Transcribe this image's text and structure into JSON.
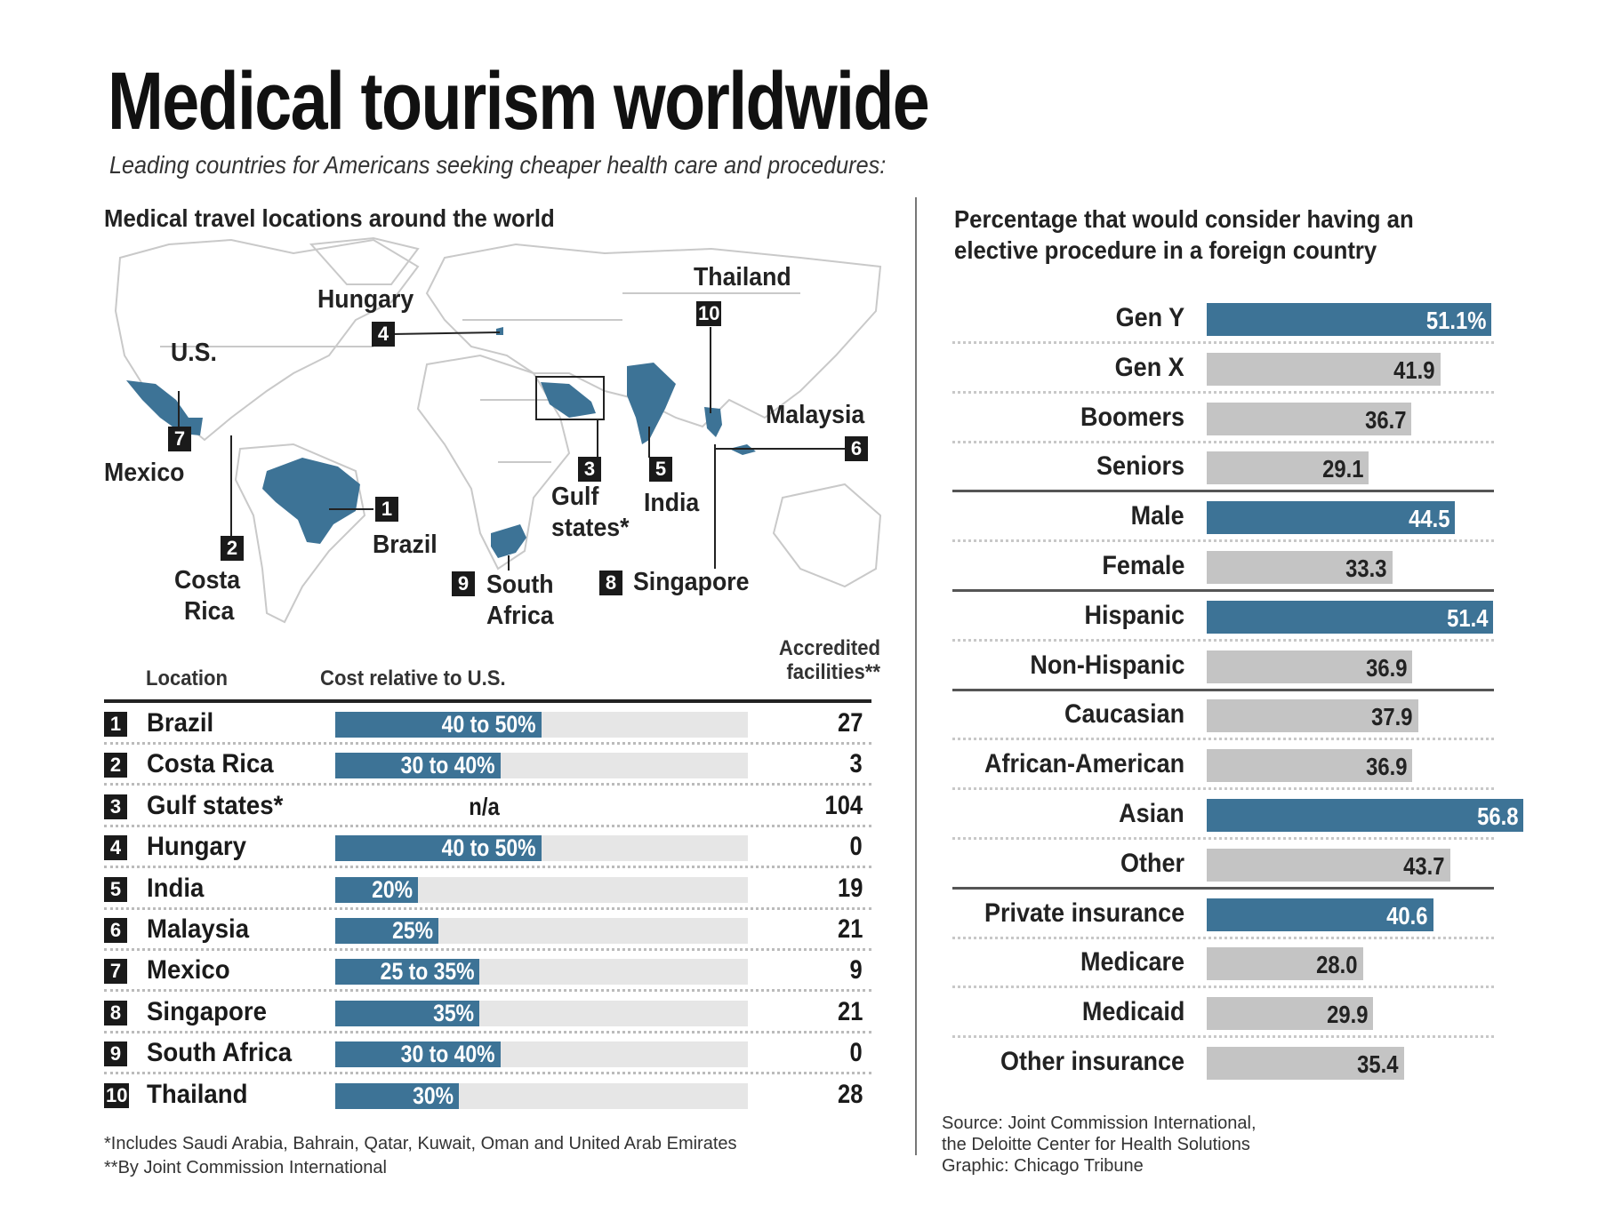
{
  "title": "Medical tourism worldwide",
  "subtitle": "Leading countries for Americans seeking cheaper health care and procedures:",
  "left_heading": "Medical travel locations around the world",
  "right_heading_line1": "Percentage that would consider having an",
  "right_heading_line2": "elective procedure in a foreign country",
  "map": {
    "us_label": "U.S.",
    "labels": {
      "mexico": "Mexico",
      "costa1": "Costa",
      "costa2": "Rica",
      "brazil": "Brazil",
      "hungary": "Hungary",
      "gulf1": "Gulf",
      "gulf2": "states*",
      "india": "India",
      "thailand": "Thailand",
      "malaysia": "Malaysia",
      "singapore": "Singapore",
      "sa1": "South",
      "sa2": "Africa"
    },
    "badges": {
      "brazil": "1",
      "costa": "2",
      "gulf": "3",
      "hungary": "4",
      "india": "5",
      "malaysia": "6",
      "mexico": "7",
      "singapore": "8",
      "sa": "9",
      "thailand": "10"
    },
    "highlight_color": "#3d7396"
  },
  "table": {
    "headers": {
      "location": "Location",
      "cost": "Cost relative to U.S.",
      "fac1": "Accredited",
      "fac2": "facilities**"
    },
    "rows": [
      {
        "rank": "1",
        "name": "Brazil",
        "cost": "40 to 50%",
        "cost_max_pct": 50,
        "facilities": "27"
      },
      {
        "rank": "2",
        "name": "Costa Rica",
        "cost": "30 to 40%",
        "cost_max_pct": 40,
        "facilities": "3"
      },
      {
        "rank": "3",
        "name": "Gulf states*",
        "cost": "n/a",
        "cost_max_pct": null,
        "facilities": "104"
      },
      {
        "rank": "4",
        "name": "Hungary",
        "cost": "40 to 50%",
        "cost_max_pct": 50,
        "facilities": "0"
      },
      {
        "rank": "5",
        "name": "India",
        "cost": "20%",
        "cost_max_pct": 20,
        "facilities": "19"
      },
      {
        "rank": "6",
        "name": "Malaysia",
        "cost": "25%",
        "cost_max_pct": 25,
        "facilities": "21"
      },
      {
        "rank": "7",
        "name": "Mexico",
        "cost": "25 to 35%",
        "cost_max_pct": 35,
        "facilities": "9"
      },
      {
        "rank": "8",
        "name": "Singapore",
        "cost": "35%",
        "cost_max_pct": 35,
        "facilities": "21"
      },
      {
        "rank": "9",
        "name": "South Africa",
        "cost": "30 to 40%",
        "cost_max_pct": 40,
        "facilities": "0"
      },
      {
        "rank": "10",
        "name": "Thailand",
        "cost": "30%",
        "cost_max_pct": 30,
        "facilities": "28"
      }
    ],
    "footnote1": "*Includes Saudi Arabia, Bahrain, Qatar, Kuwait, Oman and United Arab Emirates",
    "footnote2": "**By Joint Commission International"
  },
  "chart_data": {
    "type": "bar",
    "orientation": "horizontal",
    "title": "Percentage that would consider having an elective procedure in a foreign country",
    "xlim": [
      0,
      100
    ],
    "categories": [
      "Gen Y",
      "Gen X",
      "Boomers",
      "Seniors",
      "Male",
      "Female",
      "Hispanic",
      "Non-Hispanic",
      "Caucasian",
      "African-American",
      "Asian",
      "Other",
      "Private insurance",
      "Medicare",
      "Medicaid",
      "Other insurance"
    ],
    "values": [
      51.1,
      41.9,
      36.7,
      29.1,
      44.5,
      33.3,
      51.4,
      36.9,
      37.9,
      36.9,
      56.8,
      43.7,
      40.6,
      28.0,
      29.9,
      35.4
    ],
    "labels": [
      "51.1%",
      "41.9",
      "36.7",
      "29.1",
      "44.5",
      "33.3",
      "51.4",
      "36.9",
      "37.9",
      "36.9",
      "56.8",
      "43.7",
      "40.6",
      "28.0",
      "29.9",
      "35.4"
    ],
    "highlighted": [
      true,
      false,
      false,
      false,
      true,
      false,
      true,
      false,
      false,
      false,
      true,
      false,
      true,
      false,
      false,
      false
    ],
    "group_ends": [
      3,
      5,
      7,
      11
    ],
    "colors": {
      "highlight": "#3d7396",
      "normal": "#c4c4c4"
    }
  },
  "source": {
    "line1": "Source: Joint Commission International,",
    "line2": "the Deloitte Center for Health Solutions",
    "line3": "Graphic: Chicago Tribune"
  }
}
